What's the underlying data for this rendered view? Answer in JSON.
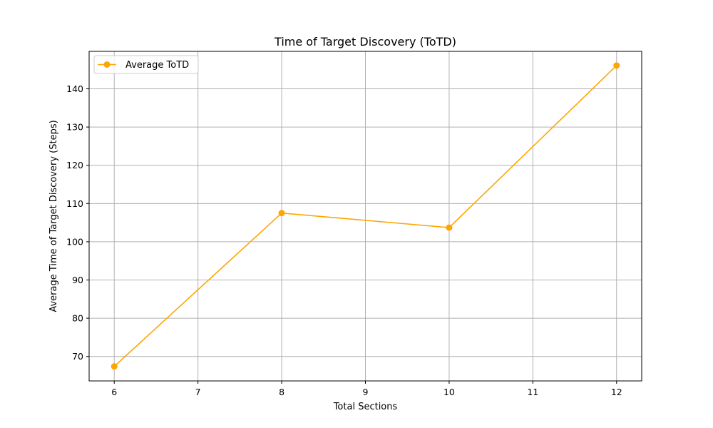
{
  "chart_data": {
    "type": "line",
    "title": "Time of Target Discovery (ToTD)",
    "xlabel": "Total Sections",
    "ylabel": "Average Time of Target Discovery (Steps)",
    "xlim": [
      5.7,
      12.3
    ],
    "ylim": [
      63.6,
      149.8
    ],
    "xticks": [
      6,
      7,
      8,
      9,
      10,
      11,
      12
    ],
    "yticks": [
      70,
      80,
      90,
      100,
      110,
      120,
      130,
      140
    ],
    "grid": true,
    "legend_position": "upper-left",
    "series": [
      {
        "name": "Average ToTD",
        "color": "#ffa500",
        "marker": "circle",
        "x": [
          6,
          8,
          10,
          12
        ],
        "y": [
          67.4,
          107.5,
          103.7,
          146.1
        ]
      }
    ]
  }
}
